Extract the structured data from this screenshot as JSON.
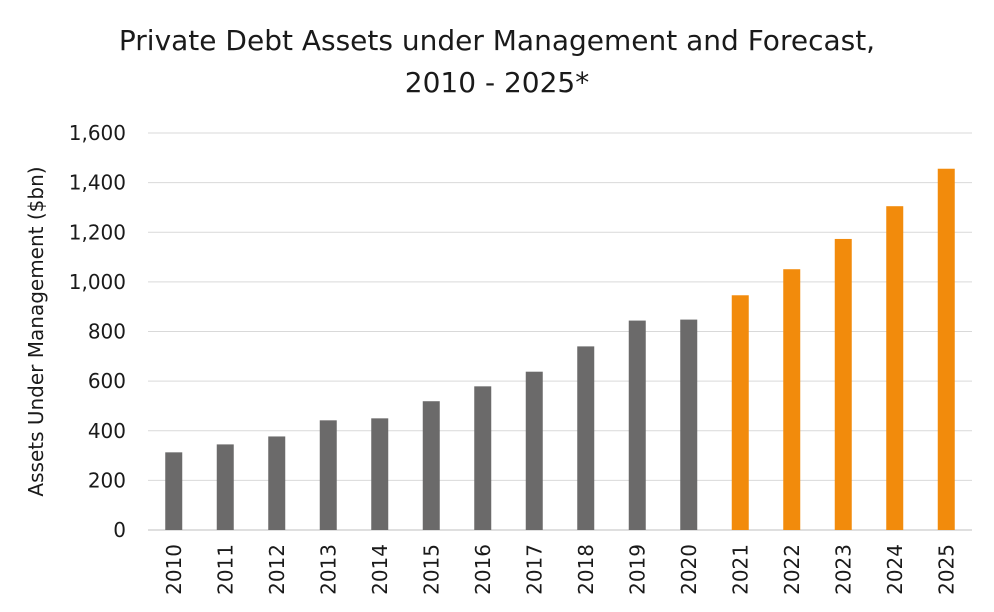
{
  "chart_data": {
    "type": "bar",
    "title_line1": "Private Debt Assets under Management and Forecast,",
    "title_line2": "2010 - 2025*",
    "xlabel": "",
    "ylabel": "Assets Under Management ($bn)",
    "ylim": [
      0,
      1600
    ],
    "yticks": [
      "0",
      "200",
      "400",
      "600",
      "800",
      "1,000",
      "1,200",
      "1,400",
      "1,600"
    ],
    "grid": true,
    "legend": "none",
    "categories": [
      "2010",
      "2011",
      "2012",
      "2013",
      "2014",
      "2015",
      "2016",
      "2017",
      "2018",
      "2019",
      "2020",
      "2021",
      "2022",
      "2023",
      "2024",
      "2025"
    ],
    "values": [
      313,
      345,
      377,
      442,
      450,
      519,
      579,
      638,
      740,
      844,
      848,
      946,
      1051,
      1173,
      1305,
      1456
    ],
    "colors": [
      "#6b6a6a",
      "#6b6a6a",
      "#6b6a6a",
      "#6b6a6a",
      "#6b6a6a",
      "#6b6a6a",
      "#6b6a6a",
      "#6b6a6a",
      "#6b6a6a",
      "#6b6a6a",
      "#6b6a6a",
      "#f28b0c",
      "#f28b0c",
      "#f28b0c",
      "#f28b0c",
      "#f28b0c"
    ]
  }
}
